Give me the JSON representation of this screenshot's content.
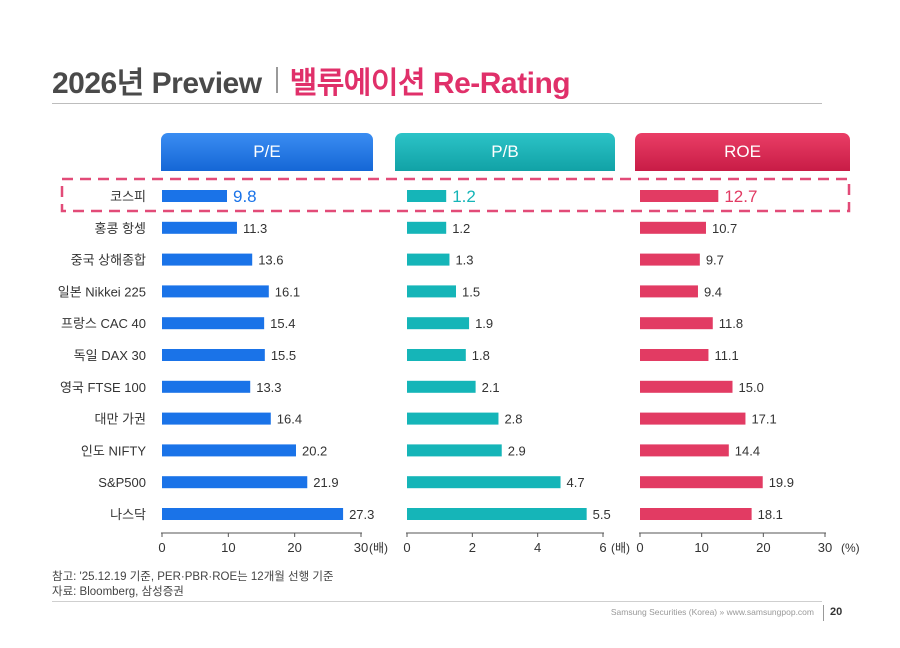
{
  "title": {
    "main": "2026년 Preview",
    "sub": "밸류에이션 Re-Rating"
  },
  "colors": {
    "pe": "#1a73e8",
    "pb": "#15b5b8",
    "roe": "#e23b63",
    "highlight": "#e24b78",
    "grid_text": "#333333"
  },
  "chart_data": {
    "type": "bar",
    "orientation": "horizontal",
    "categories": [
      "코스피",
      "홍콩 항셍",
      "중국 상해종합",
      "일본 Nikkei 225",
      "프랑스 CAC 40",
      "독일 DAX 30",
      "영국 FTSE 100",
      "대만 가권",
      "인도 NIFTY",
      "S&P500",
      "나스닥"
    ],
    "highlighted_category": "코스피",
    "panels": [
      {
        "id": "pe",
        "name": "P/E",
        "values": [
          9.8,
          11.3,
          13.6,
          16.1,
          15.4,
          15.5,
          13.3,
          16.4,
          20.2,
          21.9,
          27.3
        ],
        "labels": [
          "9.8",
          "11.3",
          "13.6",
          "16.1",
          "15.4",
          "15.5",
          "13.3",
          "16.4",
          "20.2",
          "21.9",
          "27.3"
        ],
        "xlim": [
          0,
          30
        ],
        "ticks": [
          0,
          10,
          20,
          30
        ],
        "tick_labels": [
          "0",
          "10",
          "20",
          "30"
        ],
        "unit": "(배)"
      },
      {
        "id": "pb",
        "name": "P/B",
        "values": [
          1.2,
          1.2,
          1.3,
          1.5,
          1.9,
          1.8,
          2.1,
          2.8,
          2.9,
          4.7,
          5.5
        ],
        "labels": [
          "1.2",
          "1.2",
          "1.3",
          "1.5",
          "1.9",
          "1.8",
          "2.1",
          "2.8",
          "2.9",
          "4.7",
          "5.5"
        ],
        "xlim": [
          0,
          6
        ],
        "ticks": [
          0,
          2,
          4,
          6
        ],
        "tick_labels": [
          "0",
          "2",
          "4",
          "6"
        ],
        "unit": "(배)"
      },
      {
        "id": "roe",
        "name": "ROE",
        "values": [
          12.7,
          10.7,
          9.7,
          9.4,
          11.8,
          11.1,
          15.0,
          17.1,
          14.4,
          19.9,
          18.1
        ],
        "labels": [
          "12.7",
          "10.7",
          "9.7",
          "9.4",
          "11.8",
          "11.1",
          "15.0",
          "17.1",
          "14.4",
          "19.9",
          "18.1"
        ],
        "xlim": [
          0,
          30
        ],
        "ticks": [
          0,
          10,
          20,
          30
        ],
        "tick_labels": [
          "0",
          "10",
          "20",
          "30"
        ],
        "unit": "(%)"
      }
    ]
  },
  "notes": {
    "line1": "참고: '25.12.19 기준, PER·PBR·ROE는 12개월 선행 기준",
    "line2": "자료: Bloomberg, 삼성증권"
  },
  "footer": {
    "source": "Samsung Securities (Korea) » www.samsungpop.com",
    "page": "20"
  }
}
